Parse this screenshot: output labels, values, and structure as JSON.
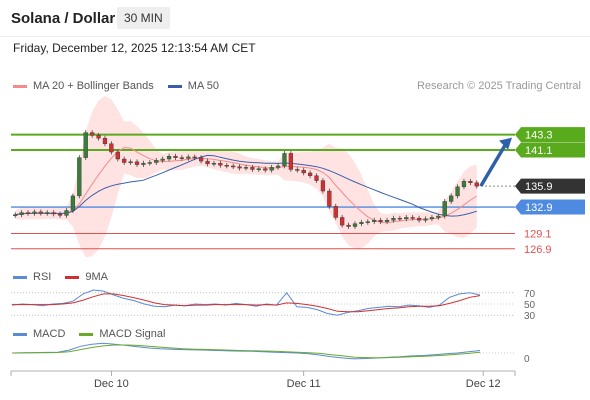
{
  "header": {
    "pair": "Solana / Dollar",
    "interval": "30 MIN",
    "timestamp": "Friday, December 12, 2025 12:13:54 AM CET",
    "credit": "Research © 2025 Trading Central"
  },
  "colors": {
    "bollinger_fill": "#ffd9d9",
    "ma20": "#f28b8b",
    "ma50": "#3a5fa8",
    "resistance": "#5aaa1e",
    "pivot": "#4d8ae0",
    "support": "#e05050",
    "current": "#333333",
    "bull_candle": "#3a7d3a",
    "bear_candle": "#d03030",
    "arrow": "#2e5fa8",
    "rsi": "#5b8ad6",
    "rsi_signal": "#d03030",
    "macd": "#5b8ad6",
    "macd_signal": "#6aaa2a"
  },
  "legends": {
    "main": [
      {
        "label": "MA 20 + Bollinger Bands",
        "color": "#f28b8b"
      },
      {
        "label": "MA 50",
        "color": "#3a5fa8"
      }
    ],
    "rsi": [
      {
        "label": "RSI",
        "color": "#5b8ad6"
      },
      {
        "label": "9MA",
        "color": "#d03030"
      }
    ],
    "macd": [
      {
        "label": "MACD",
        "color": "#5b8ad6"
      },
      {
        "label": "MACD Signal",
        "color": "#6aaa2a"
      }
    ]
  },
  "chart_data": {
    "type": "candlestick",
    "ylim": [
      125.0,
      149.0
    ],
    "x_ticks": [
      "Dec 10",
      "Dec 11",
      "Dec 12"
    ],
    "x_tick_positions": [
      15,
      45,
      73
    ],
    "close_prices": [
      131.8,
      132.1,
      132.0,
      132.2,
      132.0,
      132.1,
      131.9,
      131.7,
      132.4,
      134.5,
      140.0,
      143.6,
      143.2,
      142.8,
      142.0,
      140.8,
      139.8,
      139.3,
      139.4,
      139.0,
      139.2,
      139.3,
      139.6,
      139.8,
      140.2,
      140.0,
      139.9,
      140.1,
      140.0,
      139.5,
      139.1,
      139.2,
      138.9,
      138.8,
      138.7,
      138.5,
      138.6,
      138.3,
      138.4,
      138.2,
      138.6,
      138.8,
      140.6,
      138.3,
      138.2,
      137.8,
      137.4,
      136.7,
      135.2,
      133.0,
      131.4,
      130.3,
      130.1,
      130.5,
      130.7,
      130.8,
      131.0,
      130.8,
      131.0,
      131.3,
      131.2,
      131.4,
      131.3,
      131.0,
      131.2,
      131.4,
      131.6,
      133.7,
      134.5,
      135.8,
      136.6,
      136.4,
      135.9
    ],
    "levels": [
      {
        "value": 143.3,
        "label": "143.3",
        "kind": "resistance"
      },
      {
        "value": 141.1,
        "label": "141.1",
        "kind": "resistance"
      },
      {
        "value": 135.9,
        "label": "135.9",
        "kind": "current"
      },
      {
        "value": 132.9,
        "label": "132.9",
        "kind": "pivot"
      },
      {
        "value": 129.1,
        "label": "129.1",
        "kind": "support"
      },
      {
        "value": 126.9,
        "label": "126.9",
        "kind": "support"
      }
    ],
    "rsi": {
      "ylim": [
        0,
        100
      ],
      "tick_labels": [
        "70",
        "50",
        "30"
      ],
      "rsi_values": [
        48,
        50,
        49,
        47,
        50,
        51,
        55,
        68,
        75,
        73,
        66,
        60,
        56,
        50,
        46,
        45,
        48,
        47,
        50,
        49,
        50,
        48,
        51,
        49,
        46,
        50,
        48,
        70,
        45,
        44,
        40,
        33,
        30,
        35,
        38,
        42,
        44,
        46,
        45,
        48,
        47,
        44,
        48,
        62,
        68,
        70,
        66
      ],
      "ma_values": [
        49,
        49,
        49,
        49,
        49,
        50,
        52,
        57,
        63,
        68,
        68,
        65,
        61,
        57,
        52,
        49,
        48,
        47,
        48,
        48,
        49,
        49,
        49,
        49,
        48,
        49,
        48,
        52,
        51,
        49,
        46,
        42,
        37,
        36,
        36,
        38,
        40,
        42,
        43,
        45,
        46,
        46,
        47,
        51,
        56,
        62,
        65
      ]
    },
    "macd": {
      "tick_label": "0",
      "macd_values": [
        0.0,
        0.05,
        0.1,
        0.15,
        0.2,
        0.7,
        1.6,
        2.1,
        2.3,
        2.1,
        1.8,
        1.5,
        1.2,
        1.0,
        0.9,
        0.8,
        0.75,
        0.7,
        0.6,
        0.5,
        0.45,
        0.4,
        0.3,
        0.2,
        0.1,
        0.0,
        -0.2,
        -0.5,
        -0.9,
        -1.2,
        -1.4,
        -1.3,
        -1.2,
        -1.0,
        -0.9,
        -0.7,
        -0.6,
        -0.4,
        -0.2,
        0.0,
        0.3,
        0.6
      ],
      "signal_values": [
        0.0,
        0.02,
        0.05,
        0.08,
        0.12,
        0.3,
        0.8,
        1.3,
        1.7,
        1.9,
        1.9,
        1.8,
        1.6,
        1.4,
        1.2,
        1.0,
        0.9,
        0.85,
        0.78,
        0.7,
        0.6,
        0.55,
        0.48,
        0.4,
        0.3,
        0.2,
        0.08,
        -0.1,
        -0.4,
        -0.7,
        -1.0,
        -1.1,
        -1.15,
        -1.1,
        -1.0,
        -0.9,
        -0.8,
        -0.65,
        -0.5,
        -0.3,
        -0.1,
        0.2
      ]
    }
  }
}
